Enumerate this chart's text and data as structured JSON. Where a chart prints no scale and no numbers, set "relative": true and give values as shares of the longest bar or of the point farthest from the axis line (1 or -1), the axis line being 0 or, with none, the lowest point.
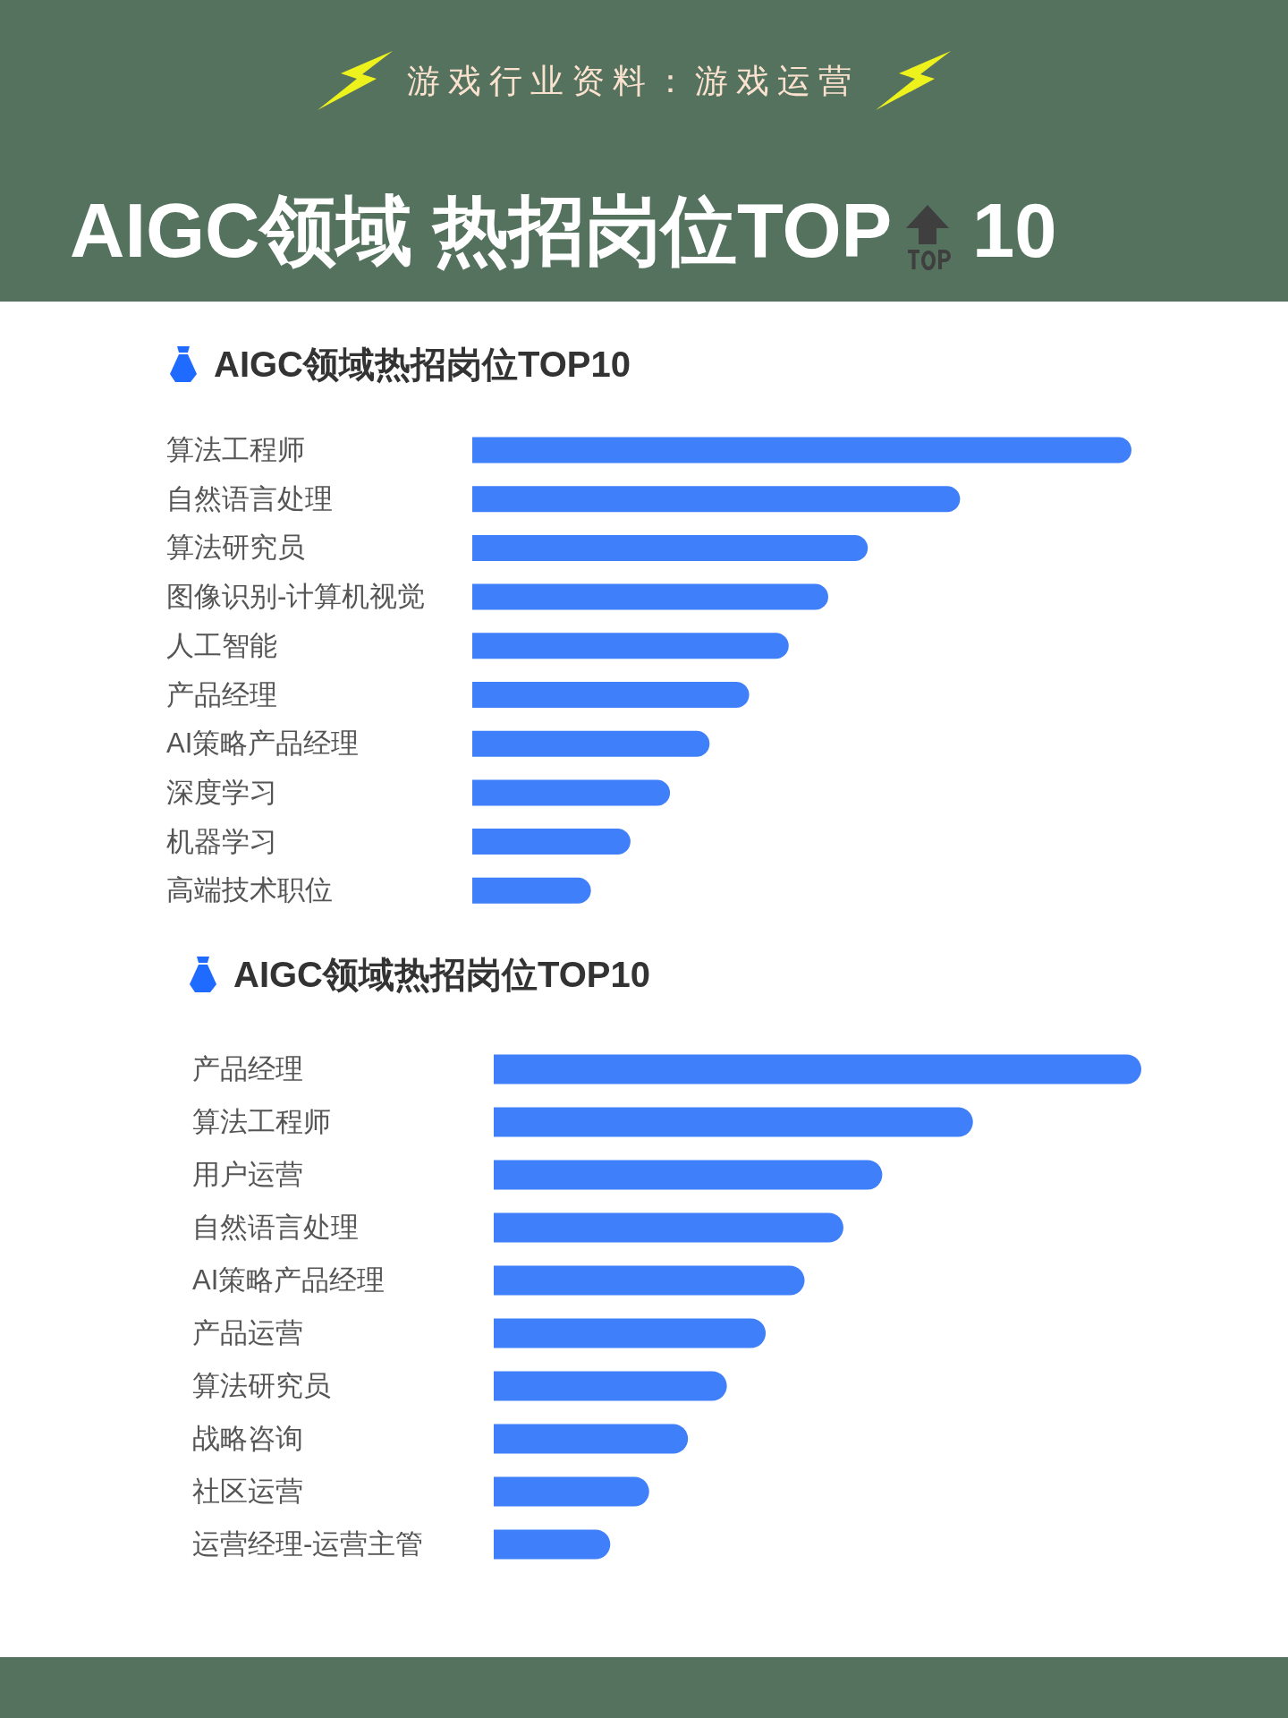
{
  "chart_data": [
    {
      "type": "other",
      "title": "AIGC领域 热招岗位TOP 10",
      "subtitle": "游戏行业资料：游戏运营"
    },
    {
      "type": "bar",
      "orientation": "horizontal",
      "relative": true,
      "title": "AIGC领域热招岗位TOP10",
      "categories": [
        "算法工程师",
        "自然语言处理",
        "算法研究员",
        "图像识别-计算机视觉",
        "人工智能",
        "产品经理",
        "AI策略产品经理",
        "深度学习",
        "机器学习",
        "高端技术职位"
      ],
      "values": [
        1,
        0.74,
        0.6,
        0.54,
        0.48,
        0.42,
        0.36,
        0.3,
        0.24,
        0.18
      ],
      "color": "#3f7ffa"
    },
    {
      "type": "bar",
      "orientation": "horizontal",
      "relative": true,
      "title": "AIGC领域热招岗位TOP10",
      "categories": [
        "产品经理",
        "算法工程师",
        "用户运营",
        "自然语言处理",
        "AI策略产品经理",
        "产品运营",
        "算法研究员",
        "战略咨询",
        "社区运营",
        "运营经理-运营主管"
      ],
      "values": [
        1,
        0.74,
        0.6,
        0.54,
        0.48,
        0.42,
        0.36,
        0.3,
        0.24,
        0.18
      ],
      "color": "#3f7ffa"
    }
  ]
}
